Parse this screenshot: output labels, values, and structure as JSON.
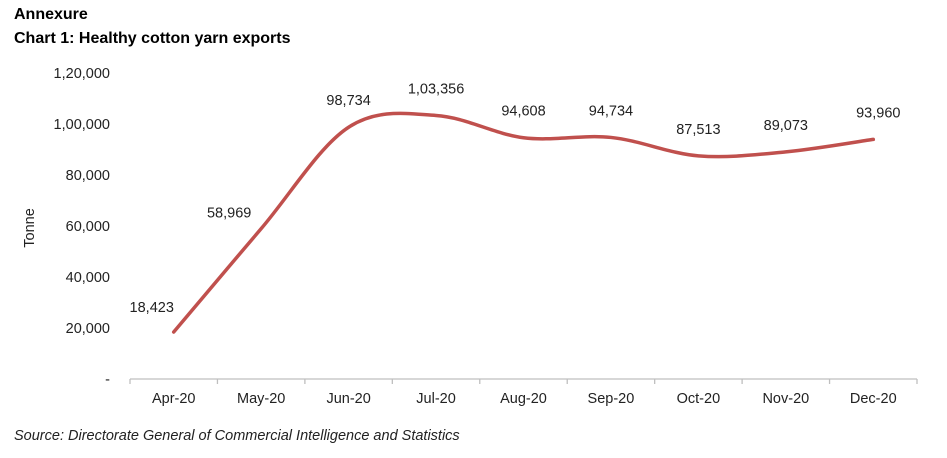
{
  "header": {
    "annex": "Annexure",
    "title": "Chart 1: Healthy cotton yarn exports"
  },
  "source": "Source: Directorate General of Commercial Intelligence and Statistics",
  "colors": {
    "line": "#C0504D",
    "axis": "#BFBFBF"
  },
  "chart_data": {
    "type": "line",
    "title": "Chart 1: Healthy cotton yarn exports",
    "xlabel": "",
    "ylabel": "Tonne",
    "ylim": [
      0,
      120000
    ],
    "yticks": [
      0,
      20000,
      40000,
      60000,
      80000,
      100000,
      120000
    ],
    "ytick_labels": [
      "-",
      "20,000",
      "40,000",
      "60,000",
      "80,000",
      "1,00,000",
      "1,20,000"
    ],
    "grid": false,
    "categories": [
      "Apr-20",
      "May-20",
      "Jun-20",
      "Jul-20",
      "Aug-20",
      "Sep-20",
      "Oct-20",
      "Nov-20",
      "Dec-20"
    ],
    "series": [
      {
        "name": "Cotton yarn exports",
        "values": [
          18423,
          58969,
          98734,
          103356,
          94608,
          94734,
          87513,
          89073,
          93960
        ],
        "labels": [
          "18,423",
          "58,969",
          "98,734",
          "1,03,356",
          "94,608",
          "94,734",
          "87,513",
          "89,073",
          "93,960"
        ],
        "smooth": true
      }
    ]
  }
}
